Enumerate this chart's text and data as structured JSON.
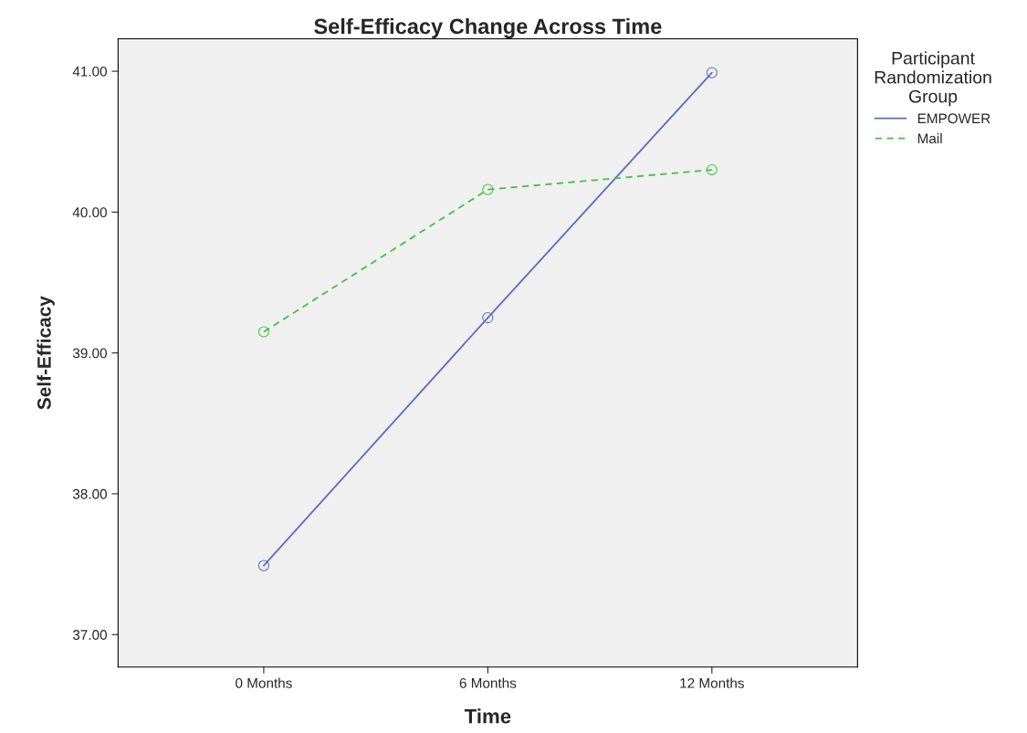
{
  "chart_data": {
    "type": "line",
    "title": "Self-Efficacy Change Across Time",
    "xlabel": "Time",
    "ylabel": "Self-Efficacy",
    "legend_title": "Participant\nRandomization\nGroup",
    "categories": [
      "0 Months",
      "6 Months",
      "12 Months"
    ],
    "series": [
      {
        "name": "EMPOWER",
        "color": "#5a6cc0",
        "values": [
          37.49,
          39.25,
          40.99
        ],
        "line_style": "solid"
      },
      {
        "name": "Mail",
        "color": "#3ec43e",
        "values": [
          39.15,
          40.16,
          40.3
        ],
        "line_style": "dashed"
      }
    ],
    "ylim": [
      36.77,
      41.23
    ],
    "yticks": [
      {
        "value": 37,
        "label": "37.00"
      },
      {
        "value": 38,
        "label": "38.00"
      },
      {
        "value": 39,
        "label": "39.00"
      },
      {
        "value": 40,
        "label": "40.00"
      },
      {
        "value": 41,
        "label": "41.00"
      }
    ],
    "marker": "circle",
    "grid": false,
    "legend": "top right"
  }
}
